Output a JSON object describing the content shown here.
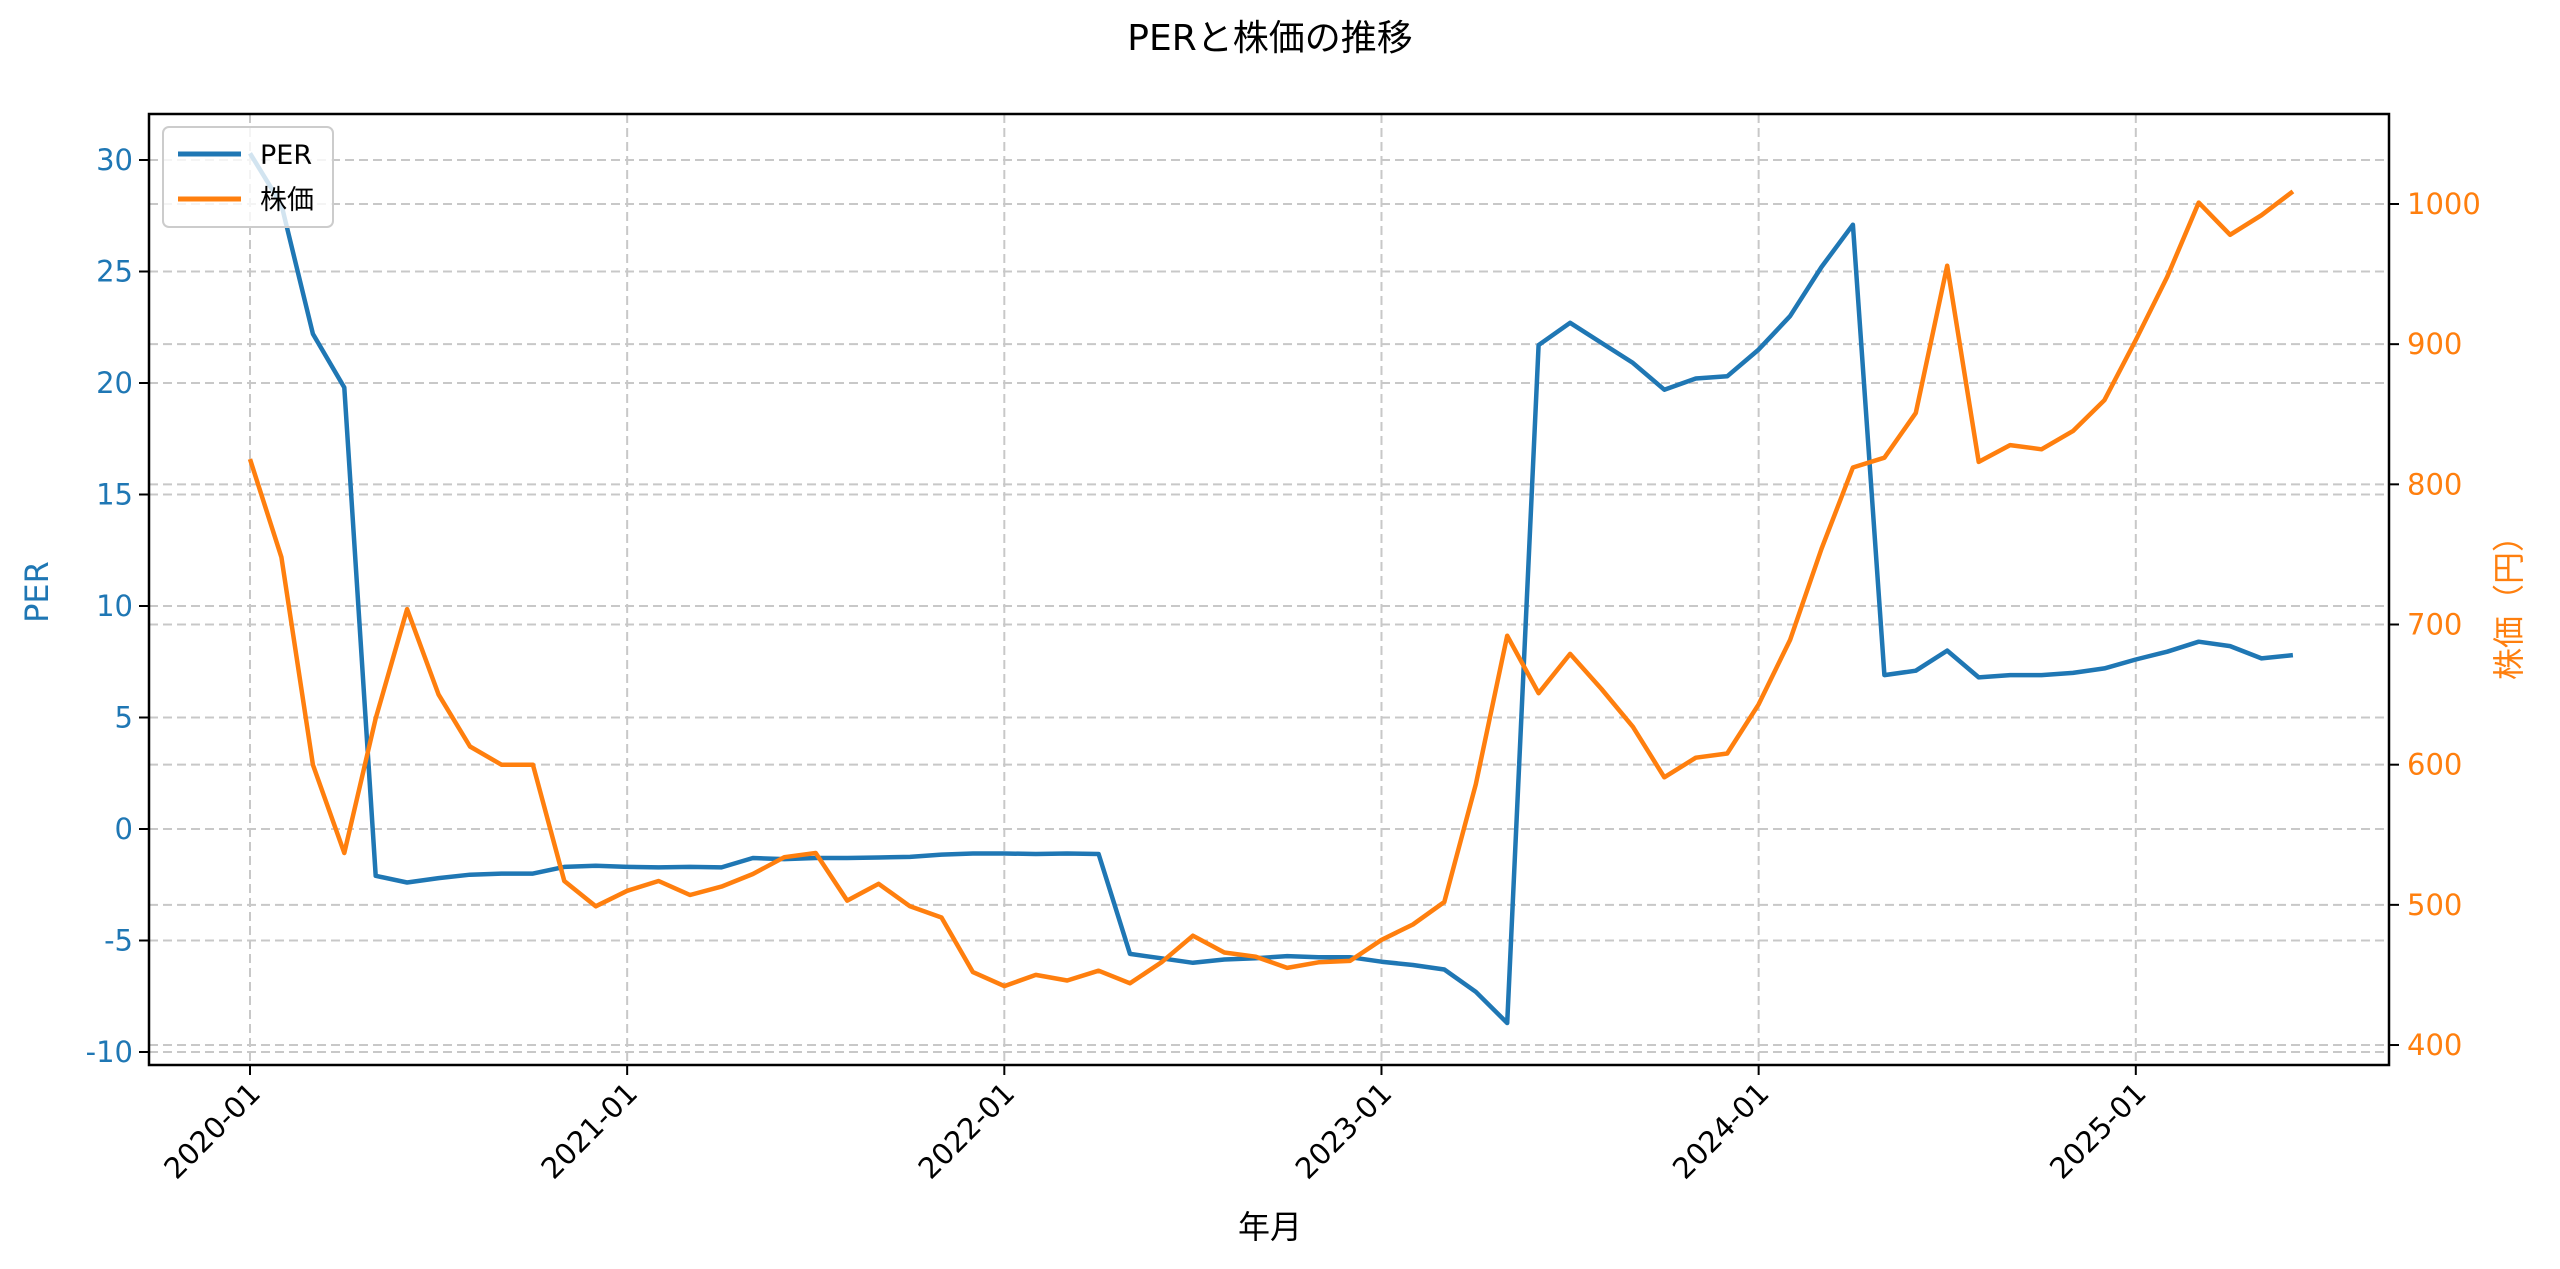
{
  "chart_data": {
    "type": "line",
    "title": "PERと株価の推移",
    "xlabel": "年月",
    "ylabel_left": "PER",
    "ylabel_right": "株価（円）",
    "x_ticks": [
      "2020-01",
      "2021-01",
      "2022-01",
      "2023-01",
      "2024-01",
      "2025-01"
    ],
    "ylim_left": [
      -10.5,
      32
    ],
    "yticks_left": [
      -10,
      -5,
      0,
      5,
      10,
      15,
      20,
      25,
      30
    ],
    "ylim_right": [
      392,
      1065
    ],
    "yticks_right": [
      400,
      500,
      600,
      700,
      800,
      900,
      1000
    ],
    "grid": true,
    "legend_position": "upper left",
    "colors": {
      "PER": "#1f77b4",
      "price": "#ff7f0e",
      "grid": "#c8c8c8"
    },
    "x": [
      "2020-01",
      "2020-02",
      "2020-03",
      "2020-04",
      "2020-05",
      "2020-06",
      "2020-07",
      "2020-08",
      "2020-09",
      "2020-10",
      "2020-11",
      "2020-12",
      "2021-01",
      "2021-02",
      "2021-03",
      "2021-04",
      "2021-05",
      "2021-06",
      "2021-07",
      "2021-08",
      "2021-09",
      "2021-10",
      "2021-11",
      "2021-12",
      "2022-01",
      "2022-02",
      "2022-03",
      "2022-04",
      "2022-05",
      "2022-06",
      "2022-07",
      "2022-08",
      "2022-09",
      "2022-10",
      "2022-11",
      "2022-12",
      "2023-01",
      "2023-02",
      "2023-03",
      "2023-04",
      "2023-05",
      "2023-06",
      "2023-07",
      "2023-08",
      "2023-09",
      "2023-10",
      "2023-11",
      "2023-12",
      "2024-01",
      "2024-02",
      "2024-03",
      "2024-04",
      "2024-05",
      "2024-06",
      "2024-07",
      "2024-08",
      "2024-09",
      "2024-10",
      "2024-11",
      "2024-12",
      "2025-01",
      "2025-02",
      "2025-03",
      "2025-04",
      "2025-05",
      "2025-06"
    ],
    "series": [
      {
        "name": "PER",
        "axis": "left",
        "values": [
          30.3,
          28.0,
          22.2,
          19.8,
          -2.1,
          -2.4,
          -2.2,
          -2.05,
          -2.0,
          -2.0,
          -1.7,
          -1.65,
          -1.7,
          -1.72,
          -1.7,
          -1.72,
          -1.3,
          -1.35,
          -1.3,
          -1.3,
          -1.28,
          -1.25,
          -1.15,
          -1.1,
          -1.1,
          -1.12,
          -1.1,
          -1.12,
          -5.6,
          -5.8,
          -6.0,
          -5.85,
          -5.8,
          -5.7,
          -5.75,
          -5.75,
          -5.95,
          -6.1,
          -6.3,
          -7.3,
          -8.7,
          21.7,
          22.7,
          21.8,
          20.9,
          19.7,
          20.2,
          20.3,
          21.5,
          23.0,
          25.2,
          27.1,
          6.9,
          7.1,
          8.0,
          6.8,
          6.9,
          6.9,
          7.0,
          7.2,
          7.6,
          7.95,
          8.4,
          8.2,
          7.65,
          7.8
        ]
      },
      {
        "name": "株価",
        "axis": "right",
        "values": [
          818,
          748,
          600,
          537,
          633,
          711,
          650,
          613,
          600,
          600,
          517,
          499,
          510,
          517,
          507,
          513,
          522,
          534,
          537,
          503,
          515,
          499,
          491,
          452,
          442,
          450,
          446,
          453,
          444,
          459,
          478,
          466,
          463,
          455,
          459,
          460,
          475,
          486,
          502,
          586,
          692,
          651,
          679,
          654,
          627,
          591,
          605,
          608,
          643,
          689,
          754,
          812,
          819,
          851,
          956,
          816,
          828,
          825,
          838,
          860,
          903,
          948,
          1001,
          978,
          992,
          1009
        ]
      }
    ]
  },
  "legend": {
    "items": [
      "PER",
      "株価"
    ]
  }
}
